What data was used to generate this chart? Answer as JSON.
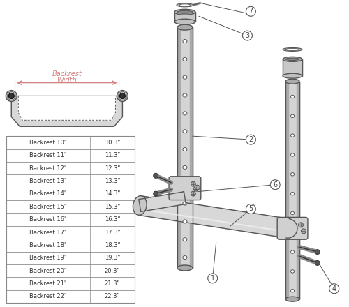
{
  "background_color": "#ffffff",
  "table_rows": [
    [
      "Backrest 10\"",
      "10.3\""
    ],
    [
      "Backrest 11\"",
      "11.3\""
    ],
    [
      "Backrest 12\"",
      "12.3\""
    ],
    [
      "Backrest 13\"",
      "13.3\""
    ],
    [
      "Backrest 14\"",
      "14.3\""
    ],
    [
      "Backrest 15\"",
      "15.3\""
    ],
    [
      "Backrest 16\"",
      "16.3\""
    ],
    [
      "Backrest 17\"",
      "17.3\""
    ],
    [
      "Backrest 18\"",
      "18.3\""
    ],
    [
      "Backrest 19\"",
      "19.3\""
    ],
    [
      "Backrest 20\"",
      "20.3\""
    ],
    [
      "Backrest 21\"",
      "21.3\""
    ],
    [
      "Backrest 22\"",
      "22.3\""
    ]
  ],
  "line_color": "#555555",
  "text_color": "#444444",
  "pink_color": "#d08080",
  "table_border_color": "#888888",
  "tube_color": "#d4d4d4",
  "tube_dark": "#aaaaaa",
  "tube_light": "#eeeeee",
  "screw_color": "#888888"
}
